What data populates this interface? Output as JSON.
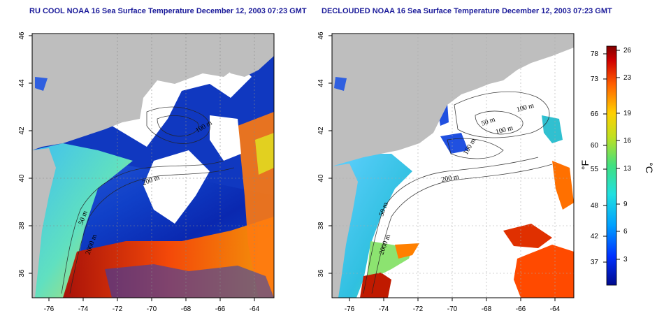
{
  "maps": [
    {
      "title": "RU COOL NOAA 16 Sea Surface Temperature December 12, 2003 07:23 GMT",
      "lon_ticks": [
        "-76",
        "-74",
        "-72",
        "-70",
        "-68",
        "-66",
        "-64"
      ],
      "lat_ticks": [
        "36",
        "38",
        "40",
        "42",
        "44",
        "46"
      ],
      "isobath_labels": [
        "50 m",
        "2000 m",
        "200 m",
        "100 m"
      ]
    },
    {
      "title": "DECLOUDED NOAA 16 Sea Surface Temperature December 12, 2003 07:23 GMT",
      "lon_ticks": [
        "-76",
        "-74",
        "-72",
        "-70",
        "-68",
        "-66",
        "-64"
      ],
      "lat_ticks": [
        "36",
        "38",
        "40",
        "42",
        "44",
        "46"
      ],
      "isobath_labels": [
        "50 m",
        "2000 m",
        "200 m",
        "100 m",
        "100 m",
        "100 m",
        "50 m"
      ]
    }
  ],
  "colorbar": {
    "fahrenheit_unit": "°F",
    "celsius_unit": "°C",
    "fahrenheit_ticks": [
      "78",
      "73",
      "66",
      "60",
      "55",
      "48",
      "42",
      "37"
    ],
    "celsius_ticks": [
      "26",
      "23",
      "19",
      "16",
      "13",
      "9",
      "6",
      "3"
    ]
  },
  "colors": {
    "land": "#bebebe",
    "cloud": "#ffffff",
    "cold": "#1a1ab0",
    "warm": "#d41e00"
  }
}
